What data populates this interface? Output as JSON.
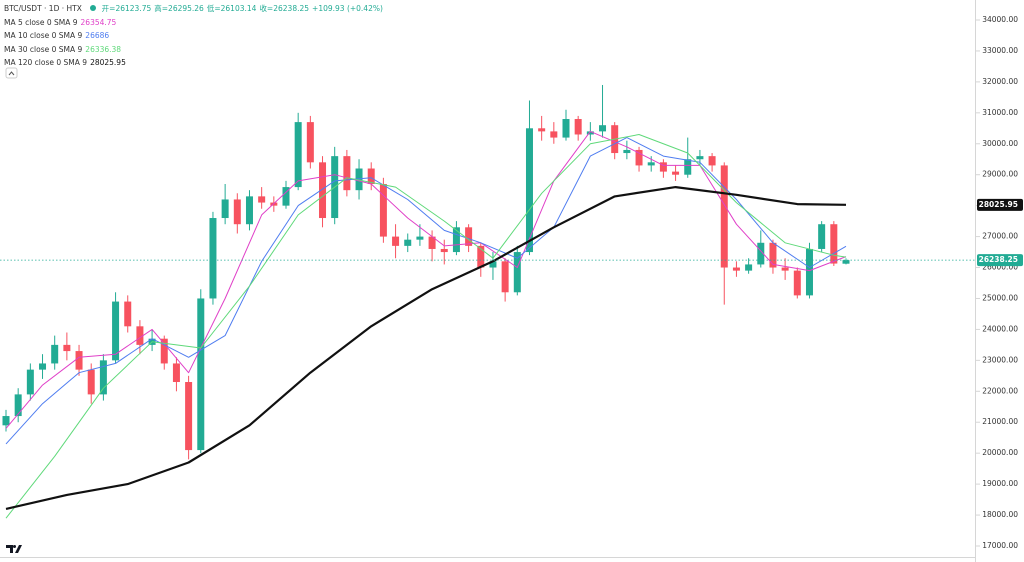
{
  "chart_data": {
    "type": "candlestick",
    "title": "BTC/USDT · 1D · HTX",
    "ohlc_labels": [
      "开=",
      "高=",
      "低=",
      "收="
    ],
    "change": "+109.93 (+0.42%)",
    "up_color": "#22ab94",
    "down_color": "#f7525f",
    "grid": false,
    "ylim": [
      17000,
      34000
    ],
    "yticks": [
      {
        "value": 17000,
        "label": "17000.00"
      },
      {
        "value": 18000,
        "label": "18000.00"
      },
      {
        "value": 19000,
        "label": "19000.00"
      },
      {
        "value": 20000,
        "label": "20000.00"
      },
      {
        "value": 21000,
        "label": "21000.00"
      },
      {
        "value": 22000,
        "label": "22000.00"
      },
      {
        "value": 23000,
        "label": "23000.00"
      },
      {
        "value": 24000,
        "label": "24000.00"
      },
      {
        "value": 25000,
        "label": "25000.00"
      },
      {
        "value": 26000,
        "label": "26000.00"
      },
      {
        "value": 27000,
        "label": "27000.00"
      },
      {
        "value": 28000,
        "label": "28000.00"
      },
      {
        "value": 29000,
        "label": "29000.00"
      },
      {
        "value": 30000,
        "label": "30000.00"
      },
      {
        "value": 31000,
        "label": "31000.00"
      },
      {
        "value": 32000,
        "label": "32000.00"
      },
      {
        "value": 33000,
        "label": "33000.00"
      },
      {
        "value": 34000,
        "label": "34000.00"
      }
    ],
    "candles": [
      [
        20900,
        21400,
        20700,
        21200
      ],
      [
        21200,
        22100,
        21000,
        21900
      ],
      [
        21900,
        22900,
        21700,
        22700
      ],
      [
        22700,
        23200,
        22400,
        22900
      ],
      [
        22900,
        23800,
        22700,
        23500
      ],
      [
        23500,
        23900,
        23000,
        23300
      ],
      [
        23300,
        23500,
        22500,
        22700
      ],
      [
        22700,
        22900,
        21600,
        21900
      ],
      [
        21900,
        23200,
        21700,
        23000
      ],
      [
        23000,
        25200,
        22900,
        24900
      ],
      [
        24900,
        25100,
        23900,
        24100
      ],
      [
        24100,
        24300,
        23200,
        23500
      ],
      [
        23500,
        24000,
        23300,
        23700
      ],
      [
        23700,
        23800,
        22700,
        22900
      ],
      [
        22900,
        23100,
        22000,
        22300
      ],
      [
        22300,
        22500,
        19800,
        20100
      ],
      [
        20100,
        25300,
        20000,
        25000
      ],
      [
        25000,
        27800,
        24800,
        27600
      ],
      [
        27600,
        28700,
        27400,
        28200
      ],
      [
        28200,
        28400,
        27100,
        27400
      ],
      [
        27400,
        28500,
        27200,
        28300
      ],
      [
        28300,
        28600,
        27900,
        28100
      ],
      [
        28100,
        28300,
        27800,
        28000
      ],
      [
        28000,
        28800,
        27900,
        28600
      ],
      [
        28600,
        31000,
        28500,
        30700
      ],
      [
        30700,
        30900,
        29200,
        29400
      ],
      [
        29400,
        29600,
        27300,
        27600
      ],
      [
        27600,
        29900,
        27400,
        29600
      ],
      [
        29600,
        29800,
        28300,
        28500
      ],
      [
        28500,
        29500,
        28200,
        29200
      ],
      [
        29200,
        29400,
        28500,
        28700
      ],
      [
        28700,
        28900,
        26800,
        27000
      ],
      [
        27000,
        27400,
        26300,
        26700
      ],
      [
        26700,
        27100,
        26500,
        26900
      ],
      [
        26900,
        27400,
        26700,
        27000
      ],
      [
        27000,
        27200,
        26200,
        26600
      ],
      [
        26600,
        26900,
        26100,
        26500
      ],
      [
        26500,
        27500,
        26400,
        27300
      ],
      [
        27300,
        27400,
        26500,
        26700
      ],
      [
        26700,
        26800,
        25700,
        26000
      ],
      [
        26000,
        26500,
        25600,
        26200
      ],
      [
        26200,
        26300,
        24900,
        25200
      ],
      [
        25200,
        26700,
        25100,
        26500
      ],
      [
        26500,
        31400,
        26400,
        30500
      ],
      [
        30500,
        30900,
        30100,
        30400
      ],
      [
        30400,
        30700,
        30000,
        30200
      ],
      [
        30200,
        31100,
        30100,
        30800
      ],
      [
        30800,
        30900,
        30100,
        30300
      ],
      [
        30300,
        30700,
        30100,
        30400
      ],
      [
        30400,
        31900,
        30200,
        30600
      ],
      [
        30600,
        30700,
        29500,
        29700
      ],
      [
        29700,
        30100,
        29500,
        29800
      ],
      [
        29800,
        29900,
        29100,
        29300
      ],
      [
        29300,
        29600,
        29100,
        29400
      ],
      [
        29400,
        29500,
        28900,
        29100
      ],
      [
        29100,
        29300,
        28800,
        29000
      ],
      [
        29000,
        30200,
        28900,
        29500
      ],
      [
        29500,
        29800,
        29300,
        29600
      ],
      [
        29600,
        29700,
        29100,
        29300
      ],
      [
        29300,
        29400,
        24800,
        26000
      ],
      [
        26000,
        26200,
        25700,
        25900
      ],
      [
        25900,
        26300,
        25800,
        26100
      ],
      [
        26100,
        27200,
        26000,
        26800
      ],
      [
        26800,
        26900,
        25800,
        26000
      ],
      [
        26000,
        26300,
        25600,
        25900
      ],
      [
        25900,
        26000,
        25000,
        25100
      ],
      [
        25100,
        26800,
        25000,
        26600
      ],
      [
        26600,
        27500,
        26500,
        27400
      ],
      [
        27400,
        27500,
        26050,
        26128.32
      ],
      [
        26123.75,
        26295.26,
        26103.14,
        26238.25
      ]
    ],
    "series": [
      {
        "name": "MA 5 close 0 SMA 9",
        "color": "#e040c8",
        "width": 1,
        "x": [
          0,
          3,
          6,
          9,
          12,
          15,
          18,
          21,
          24,
          27,
          30,
          33,
          36,
          39,
          42,
          45,
          48,
          51,
          54,
          57,
          60,
          63,
          66,
          69
        ],
        "values": [
          20800,
          22200,
          23100,
          23200,
          24000,
          22600,
          25000,
          27700,
          28800,
          29000,
          28700,
          27600,
          26700,
          26800,
          26000,
          28800,
          30400,
          29900,
          29300,
          29300,
          27400,
          26100,
          25900,
          26354.75
        ]
      },
      {
        "name": "MA 10 close 0 SMA 9",
        "color": "#4f7df0",
        "width": 1,
        "x": [
          0,
          3,
          6,
          9,
          12,
          15,
          18,
          21,
          24,
          27,
          30,
          33,
          36,
          39,
          42,
          45,
          48,
          51,
          54,
          57,
          60,
          63,
          66,
          69
        ],
        "values": [
          20300,
          21600,
          22600,
          22900,
          23700,
          23100,
          23800,
          26200,
          28000,
          28800,
          28900,
          28200,
          27200,
          26800,
          26300,
          27300,
          29600,
          30200,
          29600,
          29400,
          28200,
          26800,
          26000,
          26686.0
        ]
      },
      {
        "name": "MA 30 close 0 SMA 9",
        "color": "#5fd97a",
        "width": 1,
        "x": [
          0,
          4,
          8,
          12,
          16,
          20,
          24,
          28,
          32,
          36,
          40,
          44,
          48,
          52,
          56,
          60,
          64,
          68,
          69
        ],
        "values": [
          17900,
          19900,
          22100,
          23600,
          23400,
          25400,
          27700,
          28900,
          28600,
          27500,
          26300,
          28400,
          30000,
          30300,
          29700,
          28100,
          26800,
          26400,
          26336.38
        ]
      },
      {
        "name": "MA 120 close 0 SMA 9",
        "color": "#111111",
        "width": 2.2,
        "x": [
          0,
          5,
          10,
          15,
          20,
          25,
          30,
          35,
          40,
          45,
          50,
          55,
          60,
          65,
          69
        ],
        "values": [
          18200,
          18650,
          19000,
          19700,
          20900,
          22600,
          24100,
          25300,
          26200,
          27300,
          28300,
          28600,
          28350,
          28050,
          28025.95
        ]
      }
    ]
  }
}
